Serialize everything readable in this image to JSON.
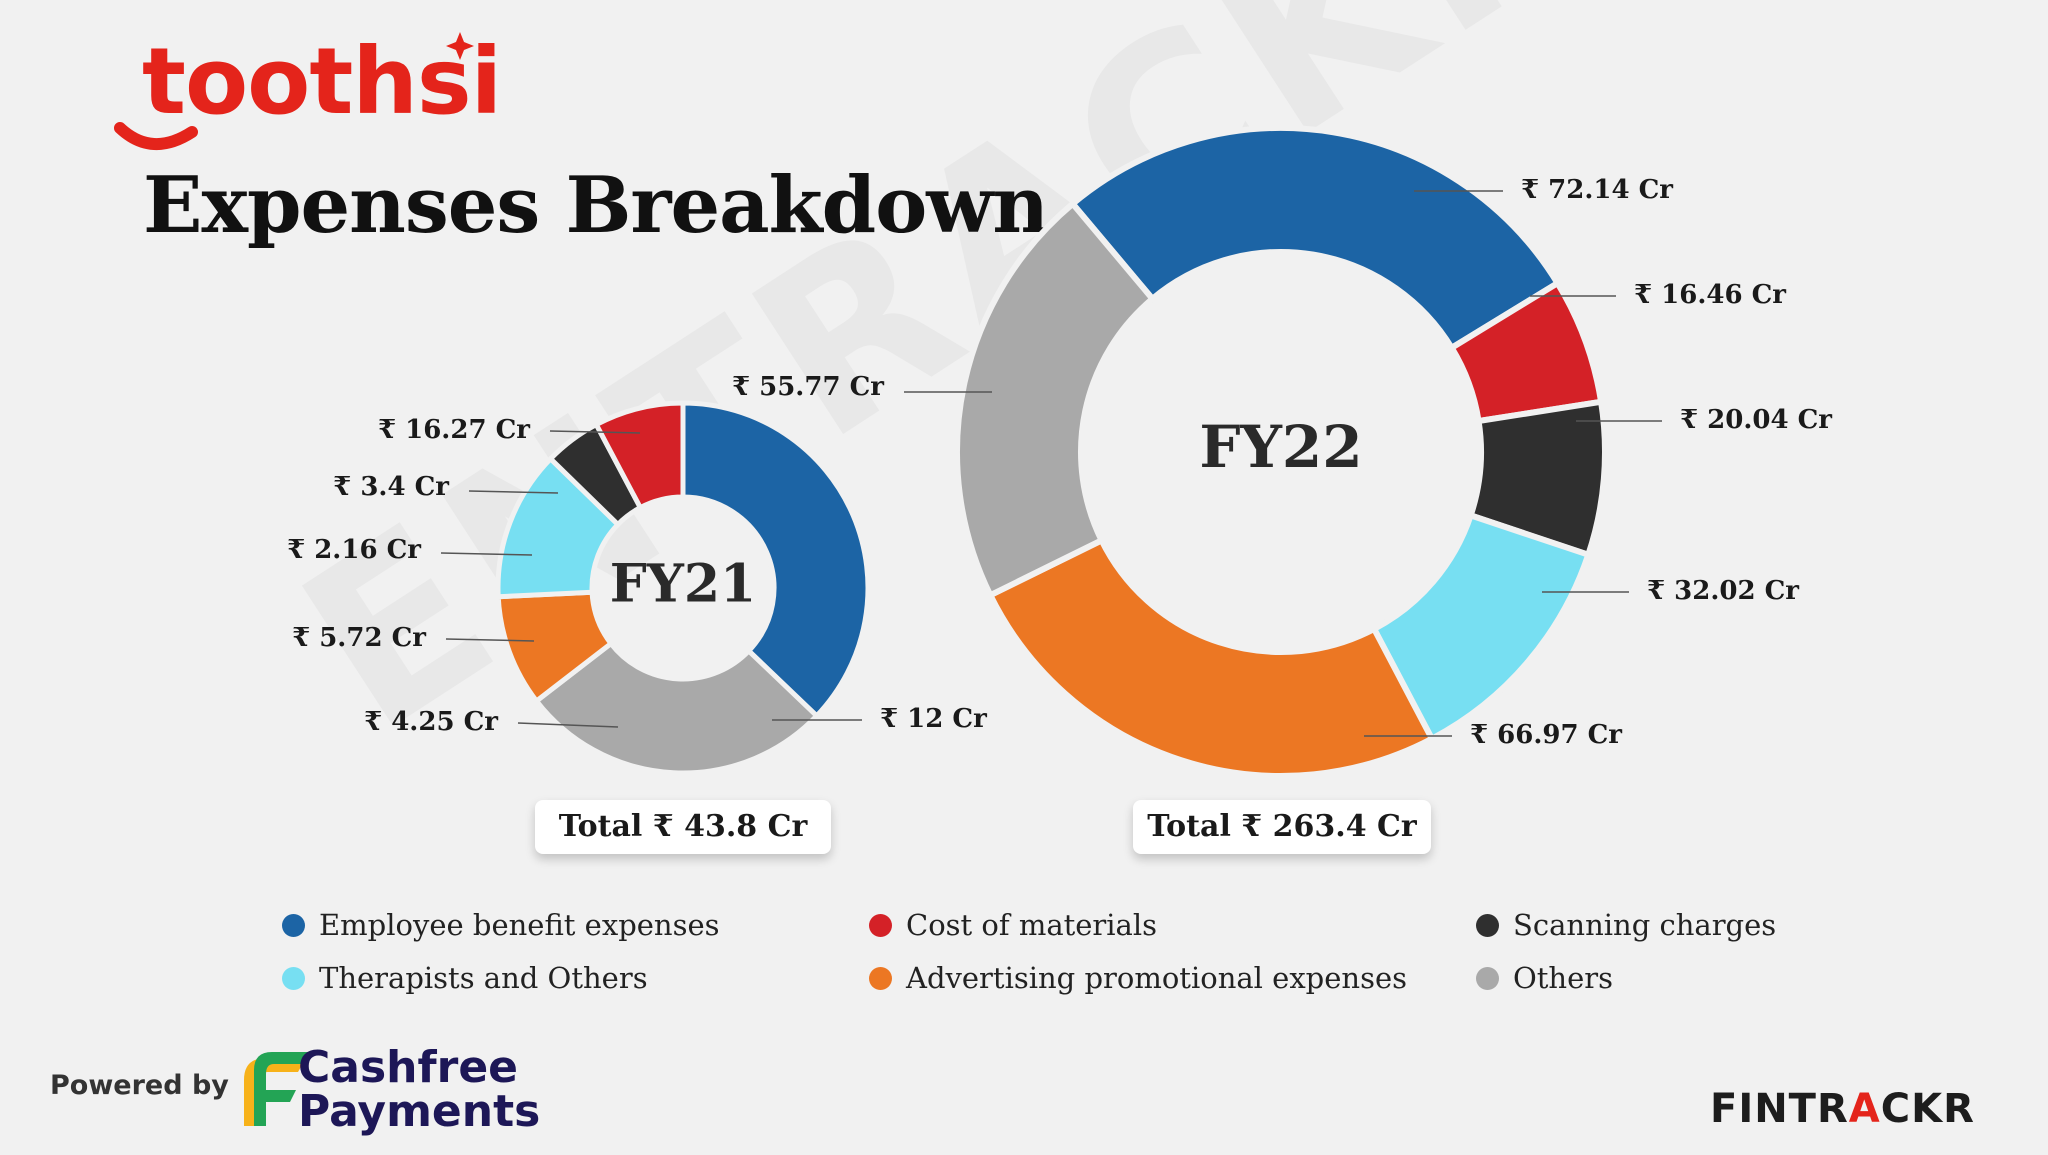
{
  "brand": {
    "name": "toothsi",
    "accent_color": "#e4241b"
  },
  "title": "Expenses Breakdown",
  "watermark": "ENTRACKR",
  "colors": {
    "employee": "#1c64a5",
    "materials": "#d42127",
    "scanning": "#2f2f2f",
    "therapists": "#77dff2",
    "advertising": "#ec7723",
    "others": "#a9a9a9"
  },
  "chart_data": [
    {
      "type": "pie",
      "title": "FY21",
      "total_label": "Total ₹ 43.8 Cr",
      "categories": [
        "Employee benefit expenses",
        "Others",
        "Advertising promotional expenses",
        "Therapists and Others",
        "Scanning charges",
        "Cost of materials"
      ],
      "values": [
        16.27,
        12,
        4.25,
        5.72,
        2.16,
        3.4
      ],
      "labels": [
        "₹ 16.27 Cr",
        "₹ 12 Cr",
        "₹ 4.25 Cr",
        "₹ 5.72 Cr",
        "₹ 2.16 Cr",
        "₹ 3.4 Cr"
      ],
      "colors": [
        "#1c64a5",
        "#a9a9a9",
        "#ec7723",
        "#77dff2",
        "#2f2f2f",
        "#d42127"
      ]
    },
    {
      "type": "pie",
      "title": "FY22",
      "total_label": "Total ₹ 263.4 Cr",
      "categories": [
        "Employee benefit expenses",
        "Cost of materials",
        "Scanning charges",
        "Therapists and Others",
        "Advertising promotional expenses",
        "Others"
      ],
      "values": [
        72.14,
        16.46,
        20.04,
        32.02,
        66.97,
        55.77
      ],
      "labels": [
        "₹ 72.14 Cr",
        "₹ 16.46 Cr",
        "₹ 20.04 Cr",
        "₹ 32.02 Cr",
        "₹ 66.97 Cr",
        "₹ 55.77 Cr"
      ],
      "colors": [
        "#1c64a5",
        "#d42127",
        "#2f2f2f",
        "#77dff2",
        "#ec7723",
        "#a9a9a9"
      ]
    }
  ],
  "legend": [
    {
      "label": "Employee benefit expenses",
      "color": "#1c64a5"
    },
    {
      "label": "Cost of materials",
      "color": "#d42127"
    },
    {
      "label": "Scanning charges",
      "color": "#2f2f2f"
    },
    {
      "label": "Therapists and Others",
      "color": "#77dff2"
    },
    {
      "label": "Advertising promotional expenses",
      "color": "#ec7723"
    },
    {
      "label": "Others",
      "color": "#a9a9a9"
    }
  ],
  "footer": {
    "powered_by": "Powered by",
    "partner_line1": "Cashfree",
    "partner_line2": "Payments",
    "publisher_part1": "FINTR",
    "publisher_accent": "A",
    "publisher_part2": "CKR"
  }
}
